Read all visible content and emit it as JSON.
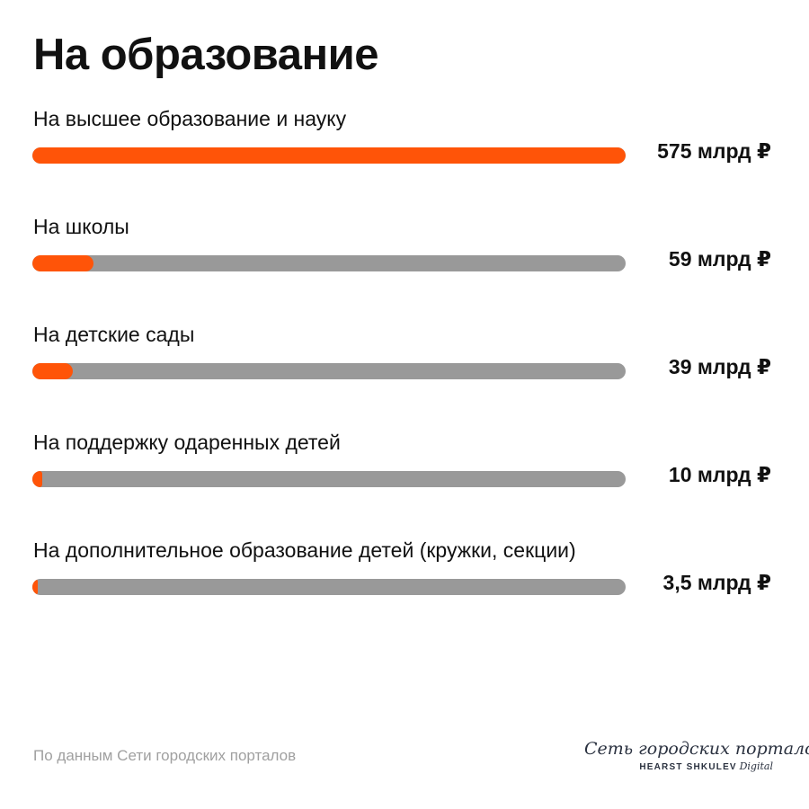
{
  "title": "На образование",
  "source": "По данным Сети городских порталов",
  "logo": {
    "main": "Сеть городских порталов",
    "sub_brand": "HEARST SHKULEV",
    "sub_digital": "Digital"
  },
  "colors": {
    "accent": "#ff5408",
    "track": "#999999",
    "text": "#111111",
    "source_text": "#a0a0a0"
  },
  "chart_data": {
    "type": "bar",
    "orientation": "horizontal",
    "title": "На образование",
    "max": 575,
    "categories": [
      "На высшее образование и науку",
      "На школы",
      "На детские сады",
      "На поддержку одаренных детей",
      "На дополнительное образование детей (кружки, секции)"
    ],
    "values": [
      575,
      59,
      39,
      10,
      3.5
    ],
    "value_labels": [
      "575 млрд ₽",
      "59 млрд ₽",
      "39 млрд ₽",
      "10 млрд ₽",
      "3,5 млрд ₽"
    ]
  }
}
